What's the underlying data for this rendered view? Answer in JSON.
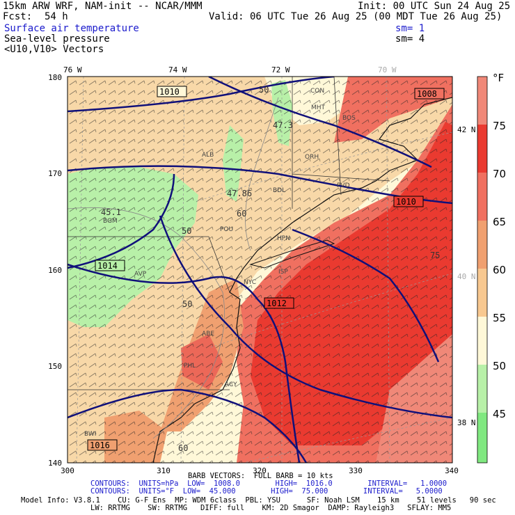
{
  "header": {
    "model_line": "15km ARW WRF, NAM-init -- NCAR/MMM",
    "fcst_label": "Fcst:",
    "fcst_value": "54 h",
    "init": "Init: 00 UTC Sun 24 Aug 25",
    "valid": "Valid: 06 UTC Tue 26 Aug 25 (00 MDT Tue 26 Aug 25)",
    "field1": "Surface air temperature",
    "field2": "Sea-level pressure",
    "field3": "<U10,V10> Vectors",
    "sm1": "sm= 1",
    "sm2": "sm= 4"
  },
  "map": {
    "lon_labels": [
      "76 W",
      "74 W",
      "72 W",
      "70 W"
    ],
    "lat_labels": [
      "42 N",
      "40 N",
      "38 N"
    ],
    "x_ticks": [
      "300",
      "310",
      "320",
      "330",
      "340"
    ],
    "y_ticks": [
      "180",
      "170",
      "160",
      "150",
      "140"
    ],
    "isobar_labels": [
      "1010",
      "1008",
      "1010",
      "1014",
      "1012",
      "1016"
    ],
    "temp_labels": [
      "50",
      "47.3",
      "47.86",
      "45.1",
      "50",
      "50",
      "75",
      "60",
      "60"
    ],
    "city_labels": [
      "CON",
      "MHT",
      "BOS",
      "ORH",
      "PVD",
      "ALB",
      "BDL",
      "BGM",
      "AVP",
      "HPN",
      "ISP",
      "NYC",
      "PHL",
      "ACY",
      "BWI",
      "POU",
      "ABE"
    ]
  },
  "colorbar": {
    "unit": "°F",
    "ticks": [
      "75",
      "70",
      "65",
      "60",
      "55",
      "50",
      "45"
    ],
    "colors": [
      "#f08878",
      "#ea3a30",
      "#f07060",
      "#f0a070",
      "#f8c890",
      "#fff8d8",
      "#b8f0a8",
      "#80e880"
    ]
  },
  "footer": {
    "barb": "BARB VECTORS:  FULL BARB = 10 kts",
    "contours1": "CONTOURS:  UNITS=hPa  LOW=  1008.0        HIGH=  1016.0        INTERVAL=   1.0000",
    "contours2": "CONTOURS:  UNITS=°F  LOW=  45.000        HIGH=  75.000        INTERVAL=   5.0000",
    "model_info": "Model Info: V3.8.1    CU: G-F Ens  MP: WDM 6class  PBL: YSU      SF: Noah LSM    15 km    51 levels   90 sec",
    "model_info2": "LW: RRTMG    SW: RRTMG   DIFF: full    KM: 2D Smagor  DAMP: Rayleigh3   SFLAY: MM5"
  }
}
